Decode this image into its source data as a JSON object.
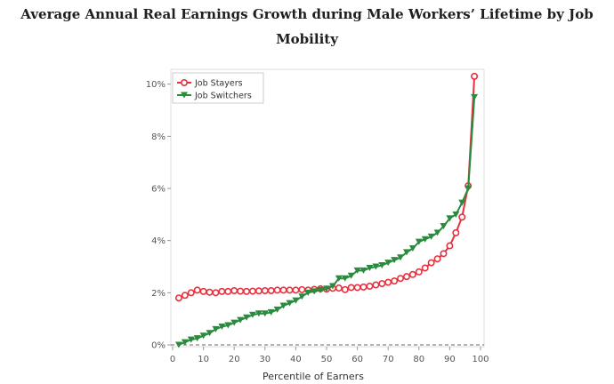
{
  "title": "Average Annual Real Earnings Growth during Male Workers’ Lifetime by Job Mobility",
  "chart_data": {
    "type": "line",
    "title": "Average Annual Real Earnings Growth during Male Workers’ Lifetime by Job Mobility",
    "xlabel": "Percentile of Earners",
    "ylabel": "",
    "xlim": [
      0,
      100
    ],
    "ylim": [
      0,
      10.5
    ],
    "x_ticks": [
      0,
      10,
      20,
      30,
      40,
      50,
      60,
      70,
      80,
      90,
      100
    ],
    "x_tick_labels": [
      "0",
      "10",
      "20",
      "30",
      "40",
      "50",
      "60",
      "70",
      "80",
      "90",
      "100"
    ],
    "y_ticks": [
      0,
      2,
      4,
      6,
      8,
      10
    ],
    "y_tick_labels": [
      "0%",
      "2%",
      "4%",
      "6%",
      "8%",
      "10%"
    ],
    "grid": false,
    "legend_position": "top-left",
    "x": [
      2,
      4,
      6,
      8,
      10,
      12,
      14,
      16,
      18,
      20,
      22,
      24,
      26,
      28,
      30,
      32,
      34,
      36,
      38,
      40,
      42,
      44,
      46,
      48,
      50,
      52,
      54,
      56,
      58,
      60,
      62,
      64,
      66,
      68,
      70,
      72,
      74,
      76,
      78,
      80,
      82,
      84,
      86,
      88,
      90,
      92,
      94,
      96,
      98
    ],
    "series": [
      {
        "name": "Job Stayers",
        "color": "#e8303f",
        "marker": "circle",
        "values": [
          1.8,
          1.9,
          2.0,
          2.1,
          2.05,
          2.02,
          2.0,
          2.05,
          2.05,
          2.08,
          2.06,
          2.05,
          2.06,
          2.07,
          2.08,
          2.08,
          2.1,
          2.1,
          2.1,
          2.1,
          2.12,
          2.1,
          2.13,
          2.15,
          2.14,
          2.17,
          2.18,
          2.12,
          2.2,
          2.2,
          2.22,
          2.25,
          2.3,
          2.35,
          2.4,
          2.45,
          2.55,
          2.62,
          2.7,
          2.8,
          2.95,
          3.15,
          3.3,
          3.5,
          3.8,
          4.3,
          4.9,
          6.1,
          10.3
        ]
      },
      {
        "name": "Job Switchers",
        "color": "#2a8a3e",
        "marker": "triangle-down",
        "values": [
          0.0,
          0.1,
          0.2,
          0.25,
          0.35,
          0.45,
          0.6,
          0.7,
          0.75,
          0.85,
          0.95,
          1.05,
          1.15,
          1.2,
          1.2,
          1.25,
          1.35,
          1.5,
          1.6,
          1.7,
          1.85,
          2.0,
          2.05,
          2.1,
          2.15,
          2.25,
          2.55,
          2.55,
          2.65,
          2.85,
          2.85,
          2.95,
          3.0,
          3.05,
          3.15,
          3.25,
          3.35,
          3.55,
          3.7,
          3.95,
          4.05,
          4.15,
          4.3,
          4.55,
          4.85,
          5.0,
          5.45,
          6.0,
          9.5
        ]
      }
    ]
  }
}
